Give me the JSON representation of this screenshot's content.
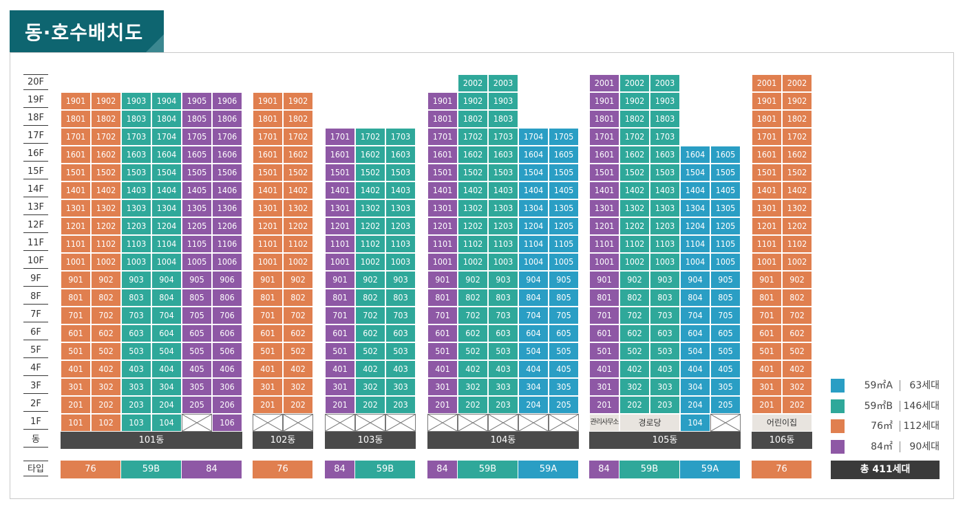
{
  "title": "동·호수배치도",
  "colors": {
    "76": "#e07f4f",
    "59B": "#2fa89a",
    "59A": "#2a9ec4",
    "84": "#8e58a5"
  },
  "floors": [
    "20F",
    "19F",
    "18F",
    "17F",
    "16F",
    "15F",
    "14F",
    "13F",
    "12F",
    "11F",
    "10F",
    "9F",
    "8F",
    "7F",
    "6F",
    "5F",
    "4F",
    "3F",
    "2F",
    "1F",
    "동"
  ],
  "type_label": "타입",
  "buildings": [
    {
      "name": "101동",
      "lines": [
        "01",
        "02",
        "03",
        "04",
        "05",
        "06"
      ],
      "types": [
        "76",
        "76",
        "59B",
        "59B",
        "84",
        "84"
      ],
      "top_floor": [
        19,
        19,
        19,
        19,
        19,
        19
      ],
      "first_floor": [
        "101",
        "102",
        "103",
        "104",
        "X",
        "106"
      ],
      "type_bar": [
        {
          "label": "76",
          "type": "76",
          "span": 2
        },
        {
          "label": "59B",
          "type": "59B",
          "span": 2
        },
        {
          "label": "84",
          "type": "84",
          "span": 2
        }
      ]
    },
    {
      "name": "102동",
      "lines": [
        "01",
        "02"
      ],
      "types": [
        "76",
        "76"
      ],
      "top_floor": [
        19,
        19
      ],
      "first_floor": [
        "X",
        "X"
      ],
      "type_bar": [
        {
          "label": "76",
          "type": "76",
          "span": 2
        }
      ]
    },
    {
      "name": "103동",
      "lines": [
        "01",
        "02",
        "03"
      ],
      "types": [
        "84",
        "59B",
        "59B"
      ],
      "top_floor": [
        17,
        17,
        17
      ],
      "first_floor": [
        "X",
        "X",
        "X"
      ],
      "type_bar": [
        {
          "label": "84",
          "type": "84",
          "span": 1
        },
        {
          "label": "59B",
          "type": "59B",
          "span": 2
        }
      ]
    },
    {
      "name": "104동",
      "lines": [
        "01",
        "02",
        "03",
        "04",
        "05"
      ],
      "types": [
        "84",
        "59B",
        "59B",
        "59A",
        "59A"
      ],
      "top_floor": [
        19,
        20,
        20,
        17,
        17
      ],
      "first_floor": [
        "X",
        "X",
        "X",
        "X",
        "X"
      ],
      "type_bar": [
        {
          "label": "84",
          "type": "84",
          "span": 1
        },
        {
          "label": "59B",
          "type": "59B",
          "span": 2
        },
        {
          "label": "59A",
          "type": "59A",
          "span": 2
        }
      ]
    },
    {
      "name": "105동",
      "lines": [
        "01",
        "02",
        "03",
        "04",
        "05"
      ],
      "types": [
        "84",
        "59B",
        "59B",
        "59A",
        "59A"
      ],
      "top_floor": [
        20,
        20,
        20,
        16,
        16
      ],
      "first_floor": [
        "관리사무소",
        "경로당",
        "경로당",
        "104",
        "X"
      ],
      "type_bar": [
        {
          "label": "84",
          "type": "84",
          "span": 1
        },
        {
          "label": "59B",
          "type": "59B",
          "span": 2
        },
        {
          "label": "59A",
          "type": "59A",
          "span": 2
        }
      ]
    },
    {
      "name": "106동",
      "lines": [
        "01",
        "02"
      ],
      "types": [
        "76",
        "76"
      ],
      "top_floor": [
        20,
        20
      ],
      "first_floor": [
        "어린이집",
        "어린이집"
      ],
      "type_bar": [
        {
          "label": "76",
          "type": "76",
          "span": 2
        }
      ]
    }
  ],
  "legend": [
    {
      "type": "59A",
      "area": "59㎡A",
      "count": "63세대"
    },
    {
      "type": "59B",
      "area": "59㎡B",
      "count": "146세대"
    },
    {
      "type": "76",
      "area": "76㎡",
      "count": "112세대"
    },
    {
      "type": "84",
      "area": "84㎡",
      "count": "90세대"
    }
  ],
  "total": "총 411세대"
}
